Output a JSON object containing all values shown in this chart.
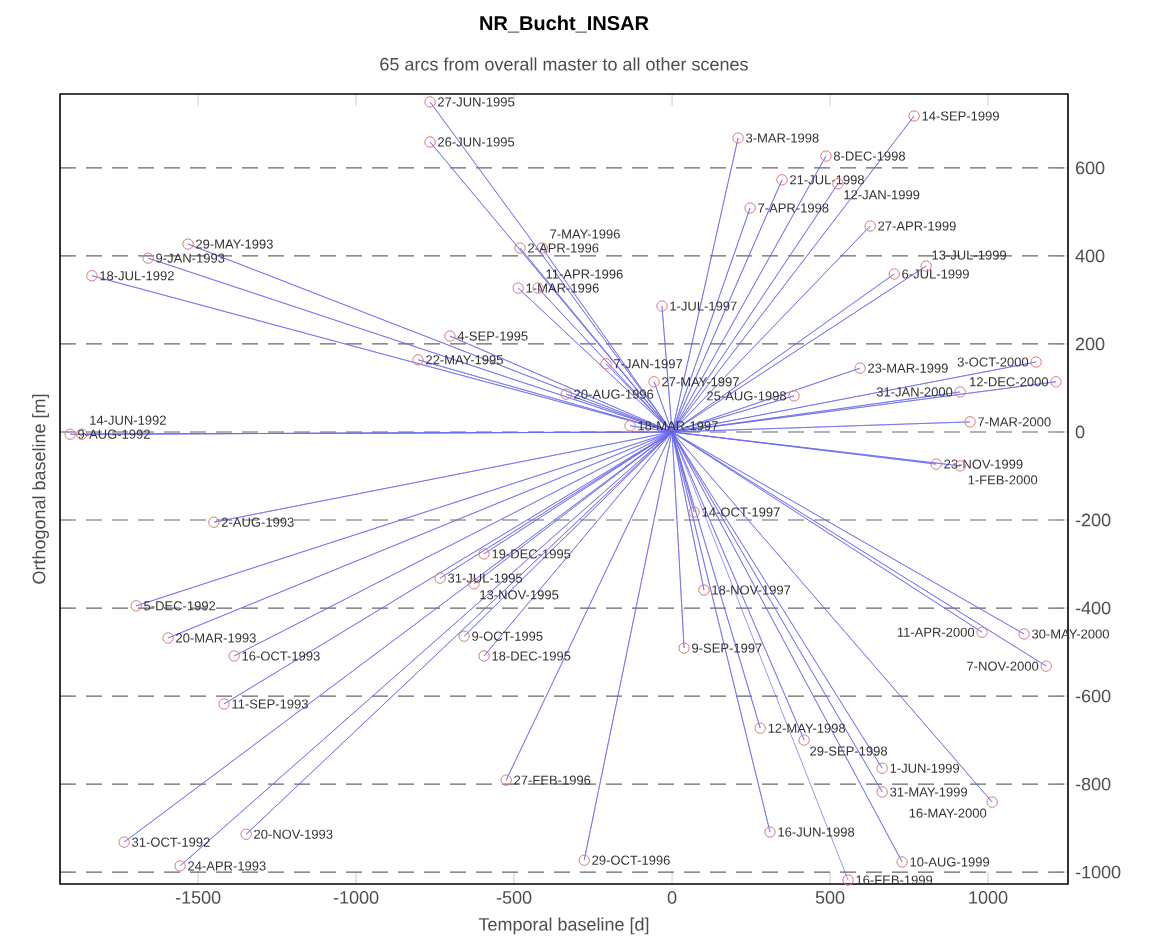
{
  "chart_data": {
    "type": "scatter",
    "title": "NR_Bucht_INSAR",
    "subtitle": "65 arcs from overall master to all other scenes",
    "xlabel": "Temporal baseline [d]",
    "ylabel": "Orthogonal baseline [m]",
    "xlim": [
      -1937,
      1253
    ],
    "ylim": [
      -1027,
      768
    ],
    "xticks": [
      -1500,
      -1000,
      -500,
      0,
      500,
      1000
    ],
    "yticks": [
      -1000,
      -800,
      -600,
      -400,
      -200,
      0,
      200,
      400,
      600
    ],
    "grid": "y",
    "series": [
      {
        "type": "line",
        "color": "#6a6af0",
        "line_style": "solid",
        "x": [
          0,
          -766,
          0,
          -766,
          0,
          -1532,
          0,
          -1658,
          0,
          -1836,
          0,
          -481,
          0,
          -411,
          0,
          -487,
          0,
          -424,
          0,
          -703,
          0,
          -804,
          0,
          -209,
          0,
          -57,
          0,
          -335,
          0,
          -133,
          0,
          -1905,
          0,
          -1868,
          0,
          766,
          0,
          209,
          0,
          487,
          0,
          348,
          0,
          525,
          0,
          247,
          0,
          627,
          0,
          703,
          0,
          804,
          0,
          -32,
          0,
          595,
          0,
          1152,
          0,
          1215,
          0,
          912,
          0,
          386,
          0,
          943,
          0,
          836,
          0,
          912,
          0,
          -1450,
          0,
          -595,
          0,
          -734,
          0,
          -627,
          0,
          -1696,
          0,
          -1595,
          0,
          -1386,
          0,
          -658,
          0,
          -595,
          0,
          -1418,
          0,
          -525,
          0,
          -1734,
          0,
          -1348,
          0,
          -1557,
          0,
          -278,
          0,
          70,
          0,
          101,
          0,
          38,
          0,
          981,
          0,
          1114,
          0,
          1184,
          0,
          279,
          0,
          418,
          0,
          665,
          0,
          665,
          0,
          1013,
          0,
          310,
          0,
          728,
          0,
          557
        ],
        "values": [
          0,
          750,
          0,
          659,
          0,
          427,
          0,
          395,
          0,
          355,
          0,
          418,
          0,
          418,
          0,
          327,
          0,
          327,
          0,
          218,
          0,
          164,
          0,
          155,
          0,
          114,
          0,
          86,
          0,
          14,
          0,
          -5,
          0,
          -5,
          0,
          718,
          0,
          668,
          0,
          627,
          0,
          573,
          0,
          564,
          0,
          509,
          0,
          468,
          0,
          359,
          0,
          377,
          0,
          286,
          0,
          145,
          0,
          159,
          0,
          114,
          0,
          91,
          0,
          82,
          0,
          23,
          0,
          -73,
          0,
          -77,
          0,
          -205,
          0,
          -277,
          0,
          -332,
          0,
          -345,
          0,
          -395,
          0,
          -468,
          0,
          -509,
          0,
          -464,
          0,
          -509,
          0,
          -618,
          0,
          -791,
          0,
          -932,
          0,
          -914,
          0,
          -986,
          0,
          -973,
          0,
          -182,
          0,
          -359,
          0,
          -491,
          0,
          -455,
          0,
          -459,
          0,
          -532,
          0,
          -673,
          0,
          -700,
          0,
          -764,
          0,
          -818,
          0,
          -841,
          0,
          -909,
          0,
          -977,
          0,
          -1018
        ]
      },
      {
        "type": "scatter",
        "color": "#e07878",
        "marker": "circle",
        "x": [
          -766,
          -766,
          -1532,
          -1658,
          -1836,
          -481,
          -411,
          -487,
          -424,
          -703,
          -804,
          -209,
          -57,
          -335,
          -133,
          -1905,
          -1868,
          766,
          209,
          487,
          348,
          525,
          247,
          627,
          703,
          804,
          -32,
          595,
          1152,
          1215,
          912,
          386,
          943,
          836,
          912,
          -1450,
          -595,
          -734,
          -627,
          -1696,
          -1595,
          -1386,
          -658,
          -595,
          -1418,
          -525,
          -1734,
          -1348,
          -1557,
          -278,
          70,
          101,
          38,
          981,
          1114,
          1184,
          279,
          418,
          665,
          665,
          1013,
          310,
          728,
          557
        ],
        "values": [
          750,
          659,
          427,
          395,
          355,
          418,
          418,
          327,
          327,
          218,
          164,
          155,
          114,
          86,
          14,
          -5,
          -5,
          718,
          668,
          627,
          573,
          564,
          509,
          468,
          359,
          377,
          286,
          145,
          159,
          114,
          91,
          82,
          23,
          -73,
          -77,
          -205,
          -277,
          -332,
          -345,
          -395,
          -468,
          -509,
          -464,
          -509,
          -618,
          -791,
          -932,
          -914,
          -986,
          -973,
          -182,
          -359,
          -491,
          -455,
          -459,
          -532,
          -673,
          -700,
          -764,
          -818,
          -841,
          -909,
          -977,
          -1018
        ]
      }
    ],
    "annotations": [
      {
        "text": "27-JUN-1995",
        "x": -766,
        "y": 750
      },
      {
        "text": "26-JUN-1995",
        "x": -766,
        "y": 659
      },
      {
        "text": "29-MAY-1993",
        "x": -1532,
        "y": 427
      },
      {
        "text": "9-JAN-1993",
        "x": -1658,
        "y": 395
      },
      {
        "text": "18-JUL-1992",
        "x": -1836,
        "y": 355
      },
      {
        "text": "2-APR-1996",
        "x": -481,
        "y": 418
      },
      {
        "text": "7-MAY-1996",
        "x": -411,
        "y": 418
      },
      {
        "text": "1-MAR-1996",
        "x": -487,
        "y": 327
      },
      {
        "text": "11-APR-1996",
        "x": -424,
        "y": 327
      },
      {
        "text": "4-SEP-1995",
        "x": -703,
        "y": 218
      },
      {
        "text": "22-MAY-1995",
        "x": -804,
        "y": 164
      },
      {
        "text": "7-JAN-1997",
        "x": -209,
        "y": 155
      },
      {
        "text": "27-MAY-1997",
        "x": -57,
        "y": 114
      },
      {
        "text": "20-AUG-1996",
        "x": -335,
        "y": 86
      },
      {
        "text": "18-MAR-1997",
        "x": -133,
        "y": 14
      },
      {
        "text": "9-AUG-1992",
        "x": -1905,
        "y": -5
      },
      {
        "text": "14-JUN-1992",
        "x": -1868,
        "y": -5
      },
      {
        "text": "14-SEP-1999",
        "x": 766,
        "y": 718
      },
      {
        "text": "3-MAR-1998",
        "x": 209,
        "y": 668
      },
      {
        "text": "8-DEC-1998",
        "x": 487,
        "y": 627
      },
      {
        "text": "21-JUL-1998",
        "x": 348,
        "y": 573
      },
      {
        "text": "12-JAN-1999",
        "x": 525,
        "y": 564
      },
      {
        "text": "7-APR-1998",
        "x": 247,
        "y": 509
      },
      {
        "text": "27-APR-1999",
        "x": 627,
        "y": 468
      },
      {
        "text": "6-JUL-1999",
        "x": 703,
        "y": 359
      },
      {
        "text": "13-JUL-1999",
        "x": 804,
        "y": 377
      },
      {
        "text": "1-JUL-1997",
        "x": -32,
        "y": 286
      },
      {
        "text": "23-MAR-1999",
        "x": 595,
        "y": 145
      },
      {
        "text": "3-OCT-2000",
        "x": 1152,
        "y": 159
      },
      {
        "text": "12-DEC-2000",
        "x": 1215,
        "y": 114
      },
      {
        "text": "31-JAN-2000",
        "x": 912,
        "y": 91
      },
      {
        "text": "25-AUG-1998",
        "x": 386,
        "y": 82
      },
      {
        "text": "7-MAR-2000",
        "x": 943,
        "y": 23
      },
      {
        "text": "23-NOV-1999",
        "x": 836,
        "y": -73
      },
      {
        "text": "1-FEB-2000",
        "x": 912,
        "y": -77
      },
      {
        "text": "2-AUG-1993",
        "x": -1450,
        "y": -205
      },
      {
        "text": "19-DEC-1995",
        "x": -595,
        "y": -277
      },
      {
        "text": "31-JUL-1995",
        "x": -734,
        "y": -332
      },
      {
        "text": "13-NOV-1995",
        "x": -627,
        "y": -345
      },
      {
        "text": "5-DEC-1992",
        "x": -1696,
        "y": -395
      },
      {
        "text": "20-MAR-1993",
        "x": -1595,
        "y": -468
      },
      {
        "text": "16-OCT-1993",
        "x": -1386,
        "y": -509
      },
      {
        "text": "9-OCT-1995",
        "x": -658,
        "y": -464
      },
      {
        "text": "18-DEC-1995",
        "x": -595,
        "y": -509
      },
      {
        "text": "11-SEP-1993",
        "x": -1418,
        "y": -618
      },
      {
        "text": "27-FEB-1996",
        "x": -525,
        "y": -791
      },
      {
        "text": "31-OCT-1992",
        "x": -1734,
        "y": -932
      },
      {
        "text": "20-NOV-1993",
        "x": -1348,
        "y": -914
      },
      {
        "text": "24-APR-1993",
        "x": -1557,
        "y": -986
      },
      {
        "text": "29-OCT-1996",
        "x": -278,
        "y": -973
      },
      {
        "text": "14-OCT-1997",
        "x": 70,
        "y": -182
      },
      {
        "text": "18-NOV-1997",
        "x": 101,
        "y": -359
      },
      {
        "text": "9-SEP-1997",
        "x": 38,
        "y": -491
      },
      {
        "text": "11-APR-2000",
        "x": 981,
        "y": -455
      },
      {
        "text": "30-MAY-2000",
        "x": 1114,
        "y": -459
      },
      {
        "text": "7-NOV-2000",
        "x": 1184,
        "y": -532
      },
      {
        "text": "12-MAY-1998",
        "x": 279,
        "y": -673
      },
      {
        "text": "29-SEP-1998",
        "x": 418,
        "y": -700
      },
      {
        "text": "1-JUN-1999",
        "x": 665,
        "y": -764
      },
      {
        "text": "31-MAY-1999",
        "x": 665,
        "y": -818
      },
      {
        "text": "16-MAY-2000",
        "x": 1013,
        "y": -841
      },
      {
        "text": "16-JUN-1998",
        "x": 310,
        "y": -909
      },
      {
        "text": "10-AUG-1999",
        "x": 728,
        "y": -977
      },
      {
        "text": "16-FEB-1999",
        "x": 557,
        "y": -1018
      }
    ]
  }
}
